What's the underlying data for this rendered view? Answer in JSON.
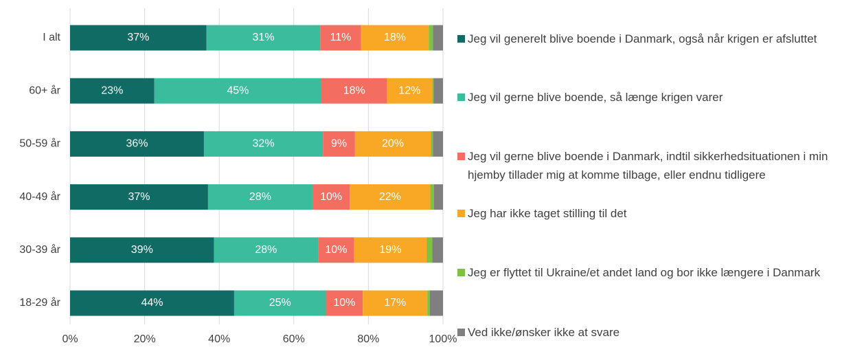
{
  "chart_data": {
    "type": "stacked-barh",
    "categories": [
      "I alt",
      "60+ år",
      "50-59 år",
      "40-49 år",
      "30-39 år",
      "18-29 år"
    ],
    "series": [
      {
        "name": "Jeg vil generelt blive boende i Danmark, også når krigen er afsluttet",
        "color": "#0f6b63",
        "values": [
          36.6,
          22.6,
          35.9,
          37.0,
          38.6,
          44.0
        ],
        "value_labels": [
          "37%",
          "23%",
          "36%",
          "37%",
          "39%",
          "44%"
        ]
      },
      {
        "name": "Jeg vil gerne blive boende, så længe krigen varer",
        "color": "#3bbc9d",
        "values": [
          30.5,
          44.8,
          31.9,
          28.0,
          27.9,
          24.6
        ],
        "value_labels": [
          "31%",
          "45%",
          "32%",
          "28%",
          "28%",
          "25%"
        ]
      },
      {
        "name": "Jeg vil gerne blive boende i Danmark, indtil sikkerhedsituationen i min hjemby tillader mig at komme tilbage, eller endnu tidligere",
        "color": "#f36e60",
        "values": [
          10.9,
          17.6,
          8.6,
          10.0,
          9.7,
          9.9
        ],
        "value_labels": [
          "11%",
          "18%",
          "9%",
          "10%",
          "10%",
          "10%"
        ]
      },
      {
        "name": "Jeg har ikke taget stilling til det",
        "color": "#f8a824",
        "values": [
          18.2,
          12.1,
          20.3,
          21.6,
          19.4,
          17.3
        ],
        "value_labels": [
          "18%",
          "12%",
          "20%",
          "22%",
          "19%",
          "17%"
        ]
      },
      {
        "name": "Jeg er flyttet til Ukraine/et andet land og bor ikke længere i Danmark",
        "color": "#7ec242",
        "values": [
          1.1,
          0.4,
          0.6,
          1.0,
          1.5,
          0.7
        ]
      },
      {
        "name": "Ved ikke/ønsker ikke at svare",
        "color": "#7f7f7f",
        "values": [
          2.7,
          2.5,
          2.7,
          2.4,
          2.9,
          3.5
        ]
      }
    ],
    "xlim": [
      0,
      100
    ],
    "xticks": [
      {
        "value": 0,
        "label": "0%"
      },
      {
        "value": 20,
        "label": "20%"
      },
      {
        "value": 40,
        "label": "40%"
      },
      {
        "value": 60,
        "label": "60%"
      },
      {
        "value": 80,
        "label": "80%"
      },
      {
        "value": 100,
        "label": "100%"
      }
    ],
    "grid": true,
    "legend": "right"
  }
}
